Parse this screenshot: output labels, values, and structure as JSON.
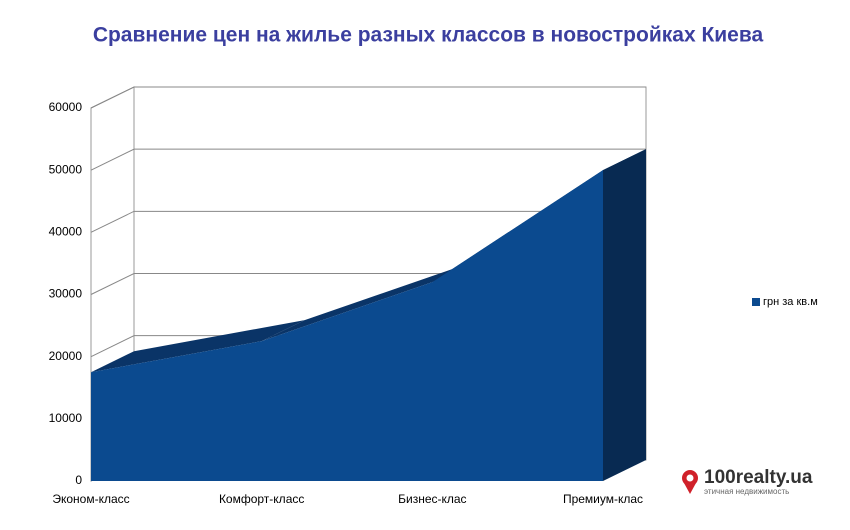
{
  "chart_data": {
    "type": "area3d",
    "title": "Сравнение цен на жилье разных классов в новостройках Киева",
    "categories": [
      "Эконом-класс",
      "Комфорт-класс",
      "Бизнес-клас",
      "Премиум-клас"
    ],
    "series": [
      {
        "name": "грн за кв.м",
        "color": "#0b4a8f",
        "values": [
          17500,
          22500,
          32000,
          50000
        ]
      }
    ],
    "ylim": [
      0,
      60000
    ],
    "yticks": [
      0,
      10000,
      20000,
      30000,
      40000,
      50000,
      60000
    ],
    "grid": true,
    "legend": "right"
  },
  "logo": {
    "name": "100realty.ua",
    "tagline": "этичная недвижимость"
  }
}
